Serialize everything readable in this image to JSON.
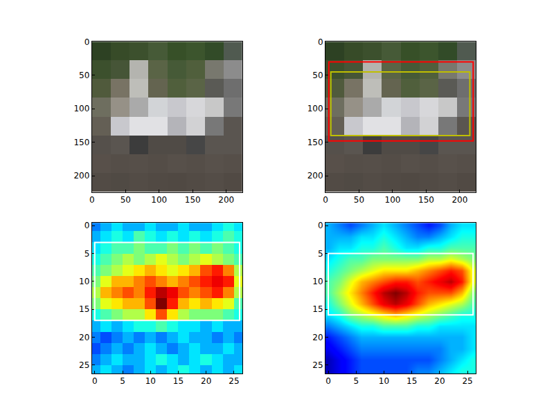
{
  "chart_data": [
    {
      "type": "image",
      "pixels": [
        [
          [
            45,
            65,
            35
          ],
          [
            55,
            75,
            40
          ],
          [
            60,
            80,
            45
          ],
          [
            70,
            90,
            55
          ],
          [
            55,
            80,
            40
          ],
          [
            60,
            85,
            45
          ],
          [
            50,
            75,
            40
          ],
          [
            80,
            90,
            80
          ]
        ],
        [
          [
            60,
            80,
            45
          ],
          [
            70,
            85,
            55
          ],
          [
            180,
            180,
            175
          ],
          [
            90,
            100,
            70
          ],
          [
            70,
            90,
            55
          ],
          [
            80,
            95,
            60
          ],
          [
            120,
            120,
            110
          ],
          [
            140,
            140,
            140
          ]
        ],
        [
          [
            80,
            90,
            60
          ],
          [
            120,
            115,
            100
          ],
          [
            190,
            190,
            185
          ],
          [
            100,
            100,
            80
          ],
          [
            80,
            95,
            60
          ],
          [
            90,
            100,
            70
          ],
          [
            90,
            90,
            85
          ],
          [
            110,
            110,
            110
          ]
        ],
        [
          [
            110,
            110,
            95
          ],
          [
            150,
            145,
            135
          ],
          [
            170,
            170,
            170
          ],
          [
            210,
            212,
            215
          ],
          [
            200,
            200,
            205
          ],
          [
            215,
            215,
            218
          ],
          [
            200,
            200,
            200
          ],
          [
            120,
            120,
            120
          ]
        ],
        [
          [
            100,
            95,
            85
          ],
          [
            200,
            200,
            205
          ],
          [
            225,
            225,
            228
          ],
          [
            225,
            225,
            228
          ],
          [
            180,
            180,
            185
          ],
          [
            210,
            210,
            212
          ],
          [
            120,
            120,
            120
          ],
          [
            90,
            85,
            80
          ]
        ],
        [
          [
            85,
            80,
            75
          ],
          [
            90,
            85,
            80
          ],
          [
            60,
            60,
            60
          ],
          [
            80,
            75,
            70
          ],
          [
            80,
            75,
            70
          ],
          [
            70,
            70,
            70
          ],
          [
            90,
            85,
            80
          ],
          [
            90,
            85,
            80
          ]
        ],
        [
          [
            88,
            80,
            74
          ],
          [
            85,
            78,
            72
          ],
          [
            86,
            79,
            73
          ],
          [
            84,
            77,
            71
          ],
          [
            87,
            80,
            74
          ],
          [
            85,
            78,
            72
          ],
          [
            88,
            81,
            75
          ],
          [
            86,
            79,
            73
          ]
        ],
        [
          [
            82,
            75,
            69
          ],
          [
            80,
            74,
            68
          ],
          [
            83,
            76,
            70
          ],
          [
            81,
            74,
            68
          ],
          [
            80,
            73,
            67
          ],
          [
            82,
            75,
            69
          ],
          [
            84,
            77,
            71
          ],
          [
            81,
            74,
            68
          ]
        ]
      ],
      "xlim": [
        0,
        224
      ],
      "ylim": [
        224,
        0
      ],
      "xticks": [
        0,
        50,
        100,
        150,
        200
      ],
      "yticks": [
        0,
        50,
        100,
        150,
        200
      ],
      "boxes": []
    },
    {
      "type": "image",
      "pixels": [
        [
          [
            45,
            65,
            35
          ],
          [
            55,
            75,
            40
          ],
          [
            60,
            80,
            45
          ],
          [
            70,
            90,
            55
          ],
          [
            55,
            80,
            40
          ],
          [
            60,
            85,
            45
          ],
          [
            50,
            75,
            40
          ],
          [
            80,
            90,
            80
          ]
        ],
        [
          [
            60,
            80,
            45
          ],
          [
            70,
            85,
            55
          ],
          [
            180,
            180,
            175
          ],
          [
            90,
            100,
            70
          ],
          [
            70,
            90,
            55
          ],
          [
            80,
            95,
            60
          ],
          [
            120,
            120,
            110
          ],
          [
            140,
            140,
            140
          ]
        ],
        [
          [
            80,
            90,
            60
          ],
          [
            120,
            115,
            100
          ],
          [
            190,
            190,
            185
          ],
          [
            100,
            100,
            80
          ],
          [
            80,
            95,
            60
          ],
          [
            90,
            100,
            70
          ],
          [
            90,
            90,
            85
          ],
          [
            110,
            110,
            110
          ]
        ],
        [
          [
            110,
            110,
            95
          ],
          [
            150,
            145,
            135
          ],
          [
            170,
            170,
            170
          ],
          [
            210,
            212,
            215
          ],
          [
            200,
            200,
            205
          ],
          [
            215,
            215,
            218
          ],
          [
            200,
            200,
            200
          ],
          [
            120,
            120,
            120
          ]
        ],
        [
          [
            100,
            95,
            85
          ],
          [
            200,
            200,
            205
          ],
          [
            225,
            225,
            228
          ],
          [
            225,
            225,
            228
          ],
          [
            180,
            180,
            185
          ],
          [
            210,
            210,
            212
          ],
          [
            120,
            120,
            120
          ],
          [
            90,
            85,
            80
          ]
        ],
        [
          [
            85,
            80,
            75
          ],
          [
            90,
            85,
            80
          ],
          [
            60,
            60,
            60
          ],
          [
            80,
            75,
            70
          ],
          [
            80,
            75,
            70
          ],
          [
            70,
            70,
            70
          ],
          [
            90,
            85,
            80
          ],
          [
            90,
            85,
            80
          ]
        ],
        [
          [
            88,
            80,
            74
          ],
          [
            85,
            78,
            72
          ],
          [
            86,
            79,
            73
          ],
          [
            84,
            77,
            71
          ],
          [
            87,
            80,
            74
          ],
          [
            85,
            78,
            72
          ],
          [
            88,
            81,
            75
          ],
          [
            86,
            79,
            73
          ]
        ],
        [
          [
            82,
            75,
            69
          ],
          [
            80,
            74,
            68
          ],
          [
            83,
            76,
            70
          ],
          [
            81,
            74,
            68
          ],
          [
            80,
            73,
            67
          ],
          [
            82,
            75,
            69
          ],
          [
            84,
            77,
            71
          ],
          [
            81,
            74,
            68
          ]
        ]
      ],
      "xlim": [
        0,
        224
      ],
      "ylim": [
        224,
        0
      ],
      "xticks": [
        0,
        50,
        100,
        150,
        200
      ],
      "yticks": [
        0,
        50,
        100,
        150,
        200
      ],
      "boxes": [
        {
          "x0": 5,
          "x1": 220,
          "y0": 30,
          "y1": 148,
          "color": "#ff0000"
        },
        {
          "x0": 8,
          "x1": 215,
          "y0": 45,
          "y1": 140,
          "color": "#bfbf00"
        }
      ]
    },
    {
      "type": "heatmap",
      "color": "jet",
      "x": [
        0,
        2,
        4,
        6,
        8,
        10,
        12,
        14,
        16,
        18,
        20,
        22,
        24,
        26
      ],
      "y": [
        0,
        2,
        4,
        6,
        8,
        10,
        12,
        14,
        16,
        18,
        20,
        22,
        24,
        26
      ],
      "cells": [
        [
          0.25,
          0.3,
          0.35,
          0.3,
          0.3,
          0.35,
          0.3,
          0.3,
          0.35,
          0.3,
          0.3,
          0.35,
          0.4,
          0.35
        ],
        [
          0.3,
          0.35,
          0.4,
          0.35,
          0.45,
          0.4,
          0.35,
          0.4,
          0.35,
          0.4,
          0.35,
          0.4,
          0.45,
          0.4
        ],
        [
          0.35,
          0.4,
          0.45,
          0.45,
          0.5,
          0.45,
          0.45,
          0.5,
          0.45,
          0.5,
          0.45,
          0.5,
          0.45,
          0.4
        ],
        [
          0.4,
          0.45,
          0.5,
          0.55,
          0.5,
          0.55,
          0.6,
          0.55,
          0.5,
          0.55,
          0.6,
          0.55,
          0.5,
          0.45
        ],
        [
          0.45,
          0.5,
          0.55,
          0.6,
          0.65,
          0.7,
          0.65,
          0.6,
          0.65,
          0.7,
          0.8,
          0.85,
          0.75,
          0.55
        ],
        [
          0.5,
          0.6,
          0.7,
          0.7,
          0.75,
          0.8,
          0.75,
          0.7,
          0.75,
          0.8,
          0.85,
          0.9,
          0.85,
          0.6
        ],
        [
          0.55,
          0.7,
          0.75,
          0.8,
          0.75,
          0.85,
          0.95,
          0.9,
          0.8,
          0.75,
          0.8,
          0.85,
          0.75,
          0.55
        ],
        [
          0.5,
          0.6,
          0.65,
          0.7,
          0.7,
          0.8,
          1.0,
          0.85,
          0.7,
          0.65,
          0.7,
          0.65,
          0.6,
          0.45
        ],
        [
          0.4,
          0.45,
          0.5,
          0.55,
          0.55,
          0.65,
          0.8,
          0.65,
          0.55,
          0.5,
          0.5,
          0.5,
          0.45,
          0.4
        ],
        [
          0.3,
          0.35,
          0.3,
          0.35,
          0.4,
          0.4,
          0.45,
          0.4,
          0.35,
          0.35,
          0.3,
          0.35,
          0.3,
          0.3
        ],
        [
          0.25,
          0.2,
          0.25,
          0.3,
          0.25,
          0.3,
          0.25,
          0.3,
          0.35,
          0.3,
          0.3,
          0.25,
          0.3,
          0.25
        ],
        [
          0.2,
          0.25,
          0.3,
          0.25,
          0.3,
          0.35,
          0.3,
          0.25,
          0.3,
          0.35,
          0.3,
          0.3,
          0.35,
          0.3
        ],
        [
          0.25,
          0.3,
          0.35,
          0.3,
          0.3,
          0.35,
          0.4,
          0.35,
          0.3,
          0.35,
          0.4,
          0.35,
          0.3,
          0.3
        ],
        [
          0.3,
          0.35,
          0.3,
          0.25,
          0.3,
          0.35,
          0.3,
          0.35,
          0.4,
          0.35,
          0.3,
          0.35,
          0.3,
          0.35
        ]
      ],
      "zlim": [
        0,
        1
      ],
      "xlim": [
        -0.5,
        26.5
      ],
      "ylim": [
        26.5,
        -0.5
      ],
      "xticks": [
        0,
        5,
        10,
        15,
        20,
        25
      ],
      "yticks": [
        0,
        5,
        10,
        15,
        20,
        25
      ],
      "boxes": [
        {
          "x0": 0,
          "x1": 26,
          "y0": 3,
          "y1": 17,
          "color": "#ffffff"
        }
      ]
    },
    {
      "type": "density",
      "color": "jet",
      "x": [
        0,
        2,
        4,
        6,
        8,
        10,
        12,
        14,
        16,
        18,
        20,
        22,
        24,
        26
      ],
      "y": [
        0,
        2,
        4,
        6,
        8,
        10,
        12,
        14,
        16,
        18,
        20,
        22,
        24,
        26
      ],
      "cells": [
        [
          0.3,
          0.25,
          0.2,
          0.25,
          0.3,
          0.35,
          0.3,
          0.25,
          0.2,
          0.15,
          0.2,
          0.3,
          0.35,
          0.35
        ],
        [
          0.3,
          0.3,
          0.3,
          0.35,
          0.35,
          0.4,
          0.35,
          0.3,
          0.25,
          0.25,
          0.3,
          0.35,
          0.4,
          0.4
        ],
        [
          0.3,
          0.35,
          0.35,
          0.4,
          0.4,
          0.45,
          0.4,
          0.35,
          0.35,
          0.4,
          0.4,
          0.45,
          0.45,
          0.45
        ],
        [
          0.35,
          0.4,
          0.45,
          0.45,
          0.5,
          0.5,
          0.5,
          0.5,
          0.5,
          0.55,
          0.55,
          0.6,
          0.55,
          0.5
        ],
        [
          0.4,
          0.45,
          0.5,
          0.55,
          0.6,
          0.65,
          0.65,
          0.65,
          0.7,
          0.75,
          0.8,
          0.85,
          0.8,
          0.6
        ],
        [
          0.45,
          0.5,
          0.6,
          0.7,
          0.75,
          0.8,
          0.85,
          0.85,
          0.8,
          0.85,
          0.9,
          0.95,
          0.85,
          0.6
        ],
        [
          0.45,
          0.55,
          0.65,
          0.75,
          0.85,
          0.95,
          1.0,
          0.95,
          0.85,
          0.8,
          0.8,
          0.8,
          0.7,
          0.5
        ],
        [
          0.4,
          0.5,
          0.6,
          0.7,
          0.8,
          0.9,
          0.95,
          0.9,
          0.8,
          0.7,
          0.65,
          0.6,
          0.55,
          0.45
        ],
        [
          0.35,
          0.4,
          0.5,
          0.55,
          0.6,
          0.65,
          0.7,
          0.65,
          0.6,
          0.55,
          0.5,
          0.45,
          0.4,
          0.4
        ],
        [
          0.25,
          0.3,
          0.35,
          0.4,
          0.4,
          0.45,
          0.45,
          0.45,
          0.4,
          0.4,
          0.35,
          0.35,
          0.35,
          0.35
        ],
        [
          0.15,
          0.2,
          0.25,
          0.3,
          0.3,
          0.3,
          0.3,
          0.3,
          0.3,
          0.3,
          0.3,
          0.3,
          0.3,
          0.35
        ],
        [
          0.1,
          0.15,
          0.2,
          0.25,
          0.25,
          0.25,
          0.25,
          0.25,
          0.25,
          0.25,
          0.25,
          0.3,
          0.3,
          0.35
        ],
        [
          0.05,
          0.1,
          0.15,
          0.2,
          0.2,
          0.2,
          0.2,
          0.2,
          0.2,
          0.2,
          0.25,
          0.3,
          0.35,
          0.4
        ],
        [
          0.05,
          0.1,
          0.15,
          0.2,
          0.2,
          0.2,
          0.2,
          0.2,
          0.25,
          0.25,
          0.3,
          0.35,
          0.4,
          0.4
        ]
      ],
      "zlim": [
        0,
        1
      ],
      "xlim": [
        -0.5,
        26.5
      ],
      "ylim": [
        26.5,
        -0.5
      ],
      "xticks": [
        0,
        5,
        10,
        15,
        20,
        25
      ],
      "yticks": [
        0,
        5,
        10,
        15,
        20,
        25
      ],
      "boxes": [
        {
          "x0": 0,
          "x1": 26,
          "y0": 5,
          "y1": 16,
          "color": "#ffffff"
        }
      ]
    }
  ]
}
